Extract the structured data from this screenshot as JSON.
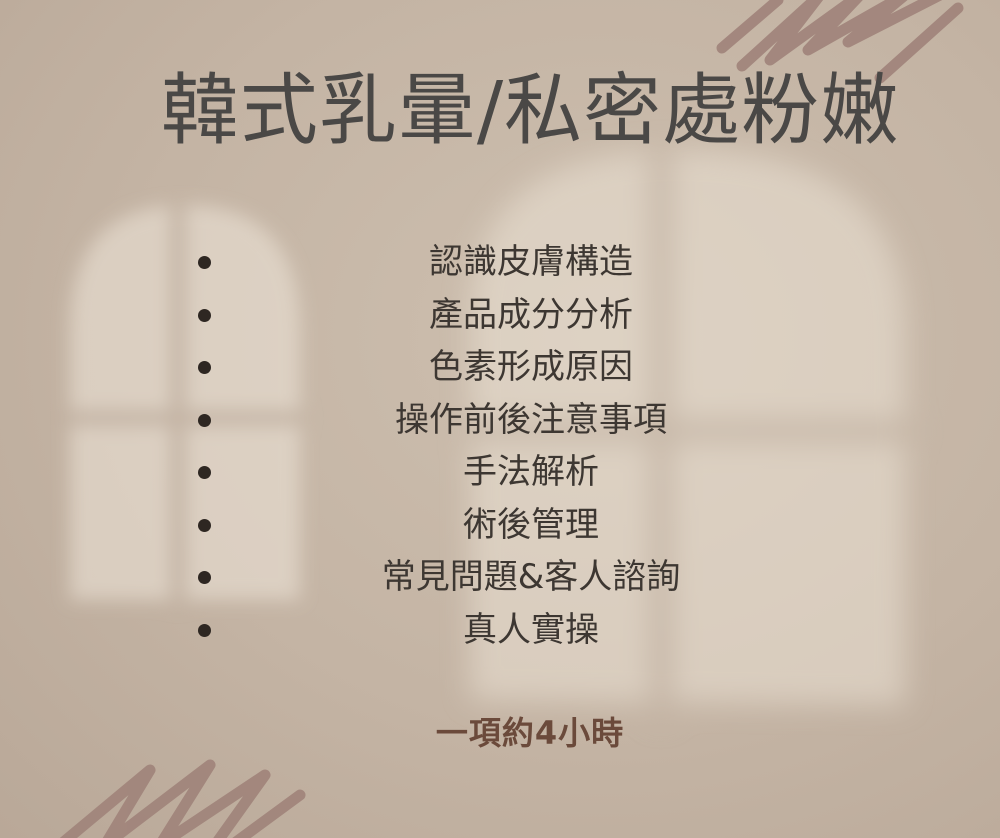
{
  "title": "韓式乳暈/私密處粉嫩",
  "topics": [
    "認識皮膚構造",
    "產品成分分析",
    "色素形成原因",
    "操作前後注意事項",
    "手法解析",
    "術後管理",
    "常見問題&客人諮詢",
    "真人實操"
  ],
  "duration": "一項約4小時",
  "colors": {
    "background": "#c4b4a4",
    "title": "#4a4846",
    "text": "#3d3732",
    "accent": "#6b4a3b",
    "scribble": "#a0837a",
    "bullet": "#2e2722"
  },
  "decorations": [
    "window-light-shadow",
    "scribble-brush-stroke"
  ]
}
